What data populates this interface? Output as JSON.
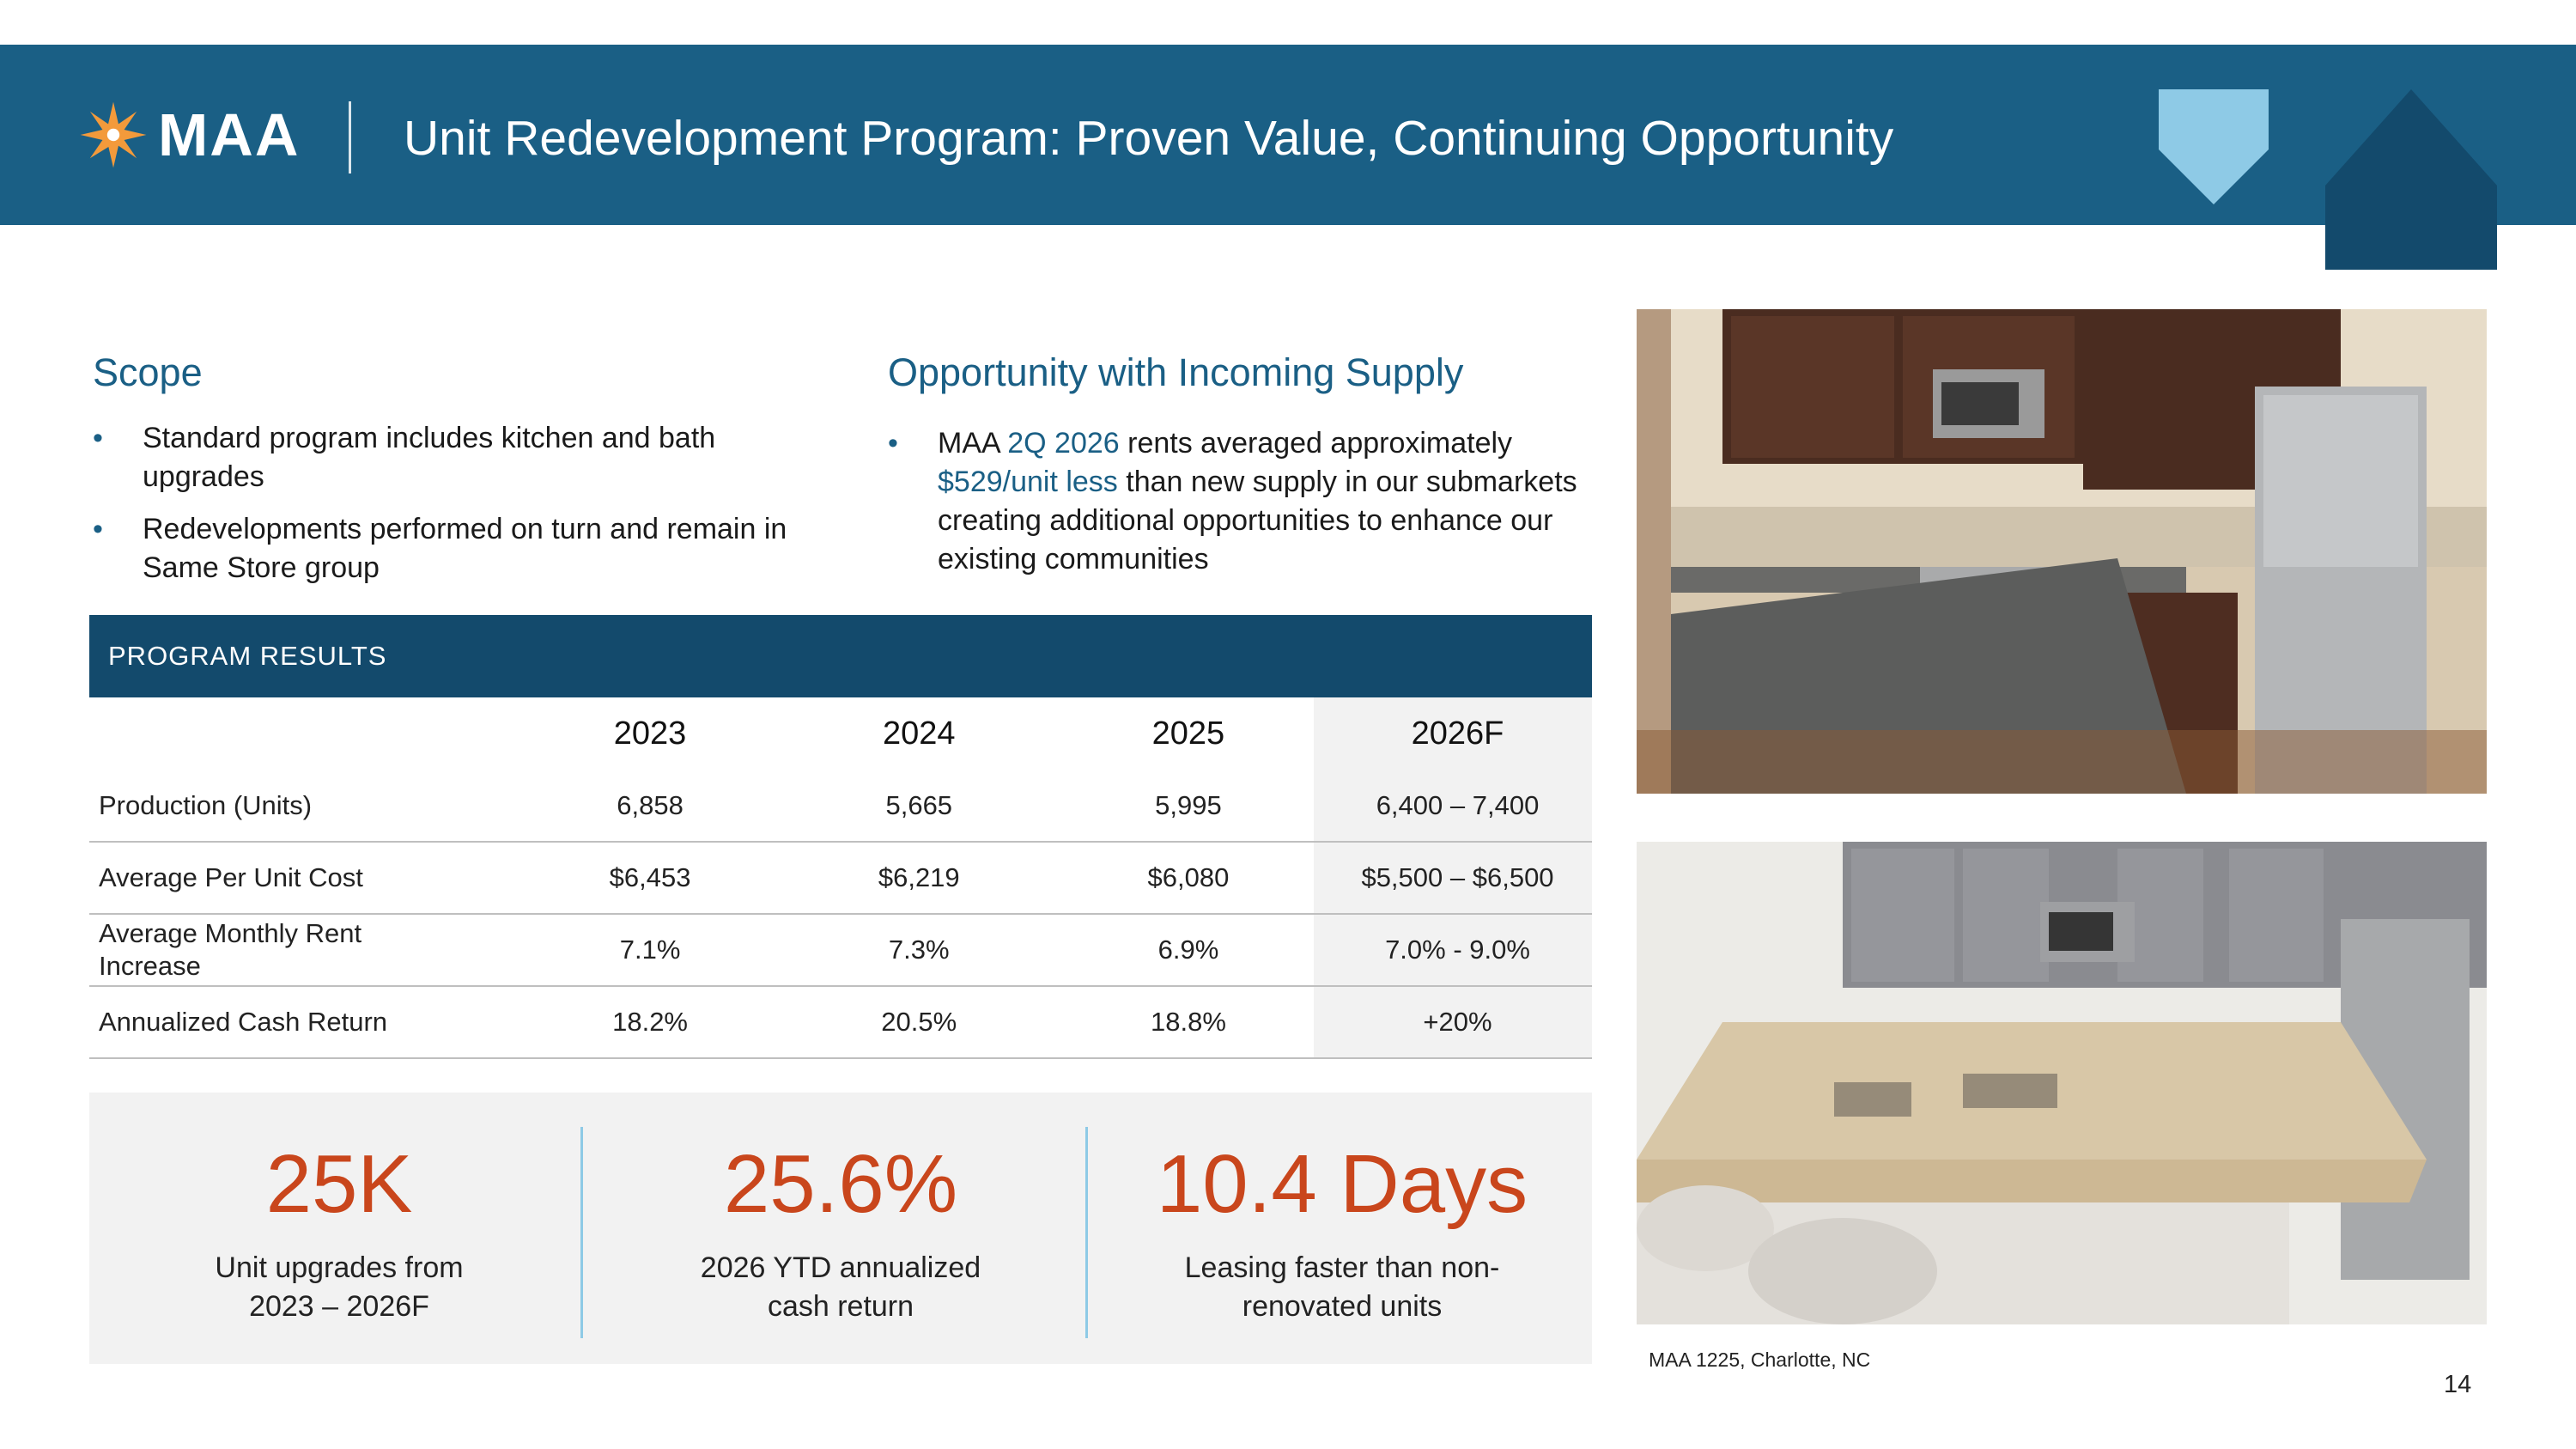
{
  "header": {
    "logo_text": "MAA",
    "title": "Unit Redevelopment Program: Proven Value, Continuing Opportunity"
  },
  "scope": {
    "heading": "Scope",
    "bullets": [
      "Standard program includes kitchen and bath upgrades",
      "Redevelopments performed on turn and remain in Same Store group"
    ]
  },
  "opportunity": {
    "heading": "Opportunity with Incoming Supply",
    "bullet": {
      "part1": "MAA ",
      "highlight1": "2Q 2026",
      "part2": " rents averaged approximately ",
      "highlight2": "$529/unit less",
      "part3": " than new supply in our submarkets creating additional opportunities to enhance our existing communities"
    }
  },
  "results": {
    "label": "PROGRAM RESULTS",
    "columns": [
      "2023",
      "2024",
      "2025",
      "2026F"
    ],
    "rows": [
      {
        "metric": "Production (Units)",
        "values": [
          "6,858",
          "5,665",
          "5,995",
          "6,400 – 7,400"
        ]
      },
      {
        "metric": "Average Per Unit Cost",
        "values": [
          "$6,453",
          "$6,219",
          "$6,080",
          "$5,500 – $6,500"
        ]
      },
      {
        "metric": "Average Monthly Rent Increase",
        "values": [
          "7.1%",
          "7.3%",
          "6.9%",
          "7.0% - 9.0%"
        ]
      },
      {
        "metric": "Annualized Cash Return",
        "values": [
          "18.2%",
          "20.5%",
          "18.8%",
          "+20%"
        ]
      }
    ]
  },
  "kpis": [
    {
      "value": "25K",
      "label": "Unit upgrades from 2023 – 2026F"
    },
    {
      "value": "25.6%",
      "label": "2026 YTD annualized cash return"
    },
    {
      "value": "10.4 Days",
      "label": "Leasing faster than non-renovated units"
    }
  ],
  "photo_caption": "MAA 1225, Charlotte, NC",
  "page_number": "14",
  "colors": {
    "header_blue": "#1a5f85",
    "table_bar": "#134a6c",
    "accent_orange": "#c9461c",
    "light_blue": "#8ecae6"
  }
}
